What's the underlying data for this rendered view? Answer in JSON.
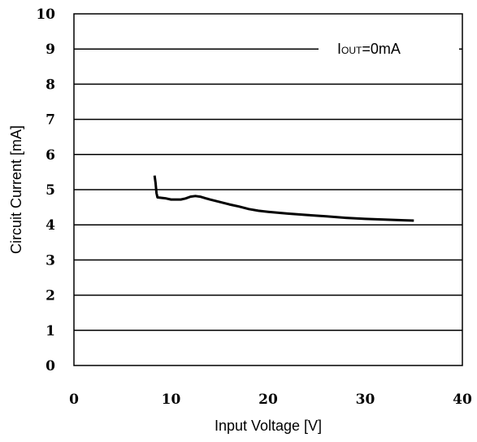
{
  "chart_data": {
    "type": "line",
    "title": "",
    "xlabel": "Input Voltage [V]",
    "ylabel": "Circuit Current [mA]",
    "xlim": [
      0,
      40
    ],
    "ylim": [
      0,
      10
    ],
    "x_ticks": [
      "0",
      "10",
      "20",
      "30",
      "40"
    ],
    "y_ticks": [
      "0",
      "1",
      "2",
      "3",
      "4",
      "5",
      "6",
      "7",
      "8",
      "9",
      "10"
    ],
    "grid": "horizontal",
    "annotation": {
      "main": "I",
      "sub": "OUT",
      "rest": "=0mA"
    },
    "series": [
      {
        "color": "#000000",
        "x": [
          8.3,
          8.4,
          8.5,
          8.6,
          9.5,
          10,
          11,
          11.5,
          12,
          12.5,
          13,
          14,
          15,
          16,
          17,
          18,
          19,
          20,
          22,
          24,
          26,
          28,
          30,
          32,
          34,
          35
        ],
        "y": [
          5.4,
          5.2,
          4.9,
          4.78,
          4.75,
          4.72,
          4.72,
          4.75,
          4.8,
          4.82,
          4.8,
          4.72,
          4.65,
          4.58,
          4.52,
          4.45,
          4.4,
          4.37,
          4.32,
          4.28,
          4.24,
          4.2,
          4.17,
          4.15,
          4.13,
          4.12
        ]
      }
    ]
  }
}
